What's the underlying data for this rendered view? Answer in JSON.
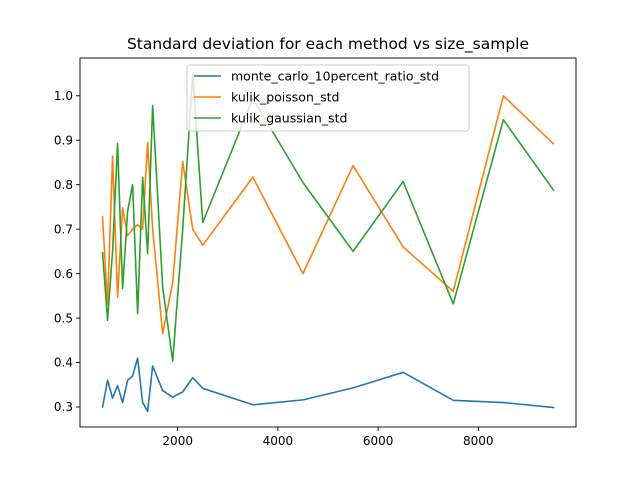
{
  "chart_data": {
    "type": "line",
    "title": "Standard deviation for each method vs size_sample",
    "xlabel": "",
    "ylabel": "",
    "xlim": [
      50,
      9950
    ],
    "ylim": [
      0.255,
      1.085
    ],
    "xticks": [
      2000,
      4000,
      6000,
      8000
    ],
    "yticks": [
      0.3,
      0.4,
      0.5,
      0.6,
      0.7,
      0.8,
      0.9,
      1.0
    ],
    "ytick_labels": [
      "0.3",
      "0.4",
      "0.5",
      "0.6",
      "0.7",
      "0.8",
      "0.9",
      "1.0"
    ],
    "grid": false,
    "legend_position": "top-center",
    "x": [
      500,
      600,
      700,
      800,
      900,
      1000,
      1100,
      1200,
      1300,
      1400,
      1500,
      1700,
      1900,
      2100,
      2300,
      2500,
      3500,
      4500,
      5500,
      6500,
      7500,
      8500,
      9500
    ],
    "series": [
      {
        "name": "monte_carlo_10percent_ratio_std",
        "color": "#1f77b4",
        "values": [
          0.3,
          0.36,
          0.32,
          0.348,
          0.31,
          0.36,
          0.37,
          0.41,
          0.31,
          0.29,
          0.392,
          0.337,
          0.322,
          0.334,
          0.366,
          0.342,
          0.305,
          0.316,
          0.343,
          0.378,
          0.315,
          0.31,
          0.299
        ]
      },
      {
        "name": "kulik_poisson_std",
        "color": "#ff7f0e",
        "values": [
          0.728,
          0.53,
          0.864,
          0.546,
          0.748,
          0.685,
          0.7,
          0.71,
          0.7,
          0.895,
          0.7,
          0.465,
          0.58,
          0.852,
          0.7,
          0.664,
          0.817,
          0.6,
          0.843,
          0.66,
          0.56,
          1.0,
          0.892
        ]
      },
      {
        "name": "kulik_gaussian_std",
        "color": "#2ca02c",
        "values": [
          0.647,
          0.495,
          0.65,
          0.893,
          0.566,
          0.74,
          0.8,
          0.51,
          0.816,
          0.645,
          0.978,
          0.57,
          0.403,
          0.7,
          1.05,
          0.715,
          0.994,
          0.805,
          0.65,
          0.807,
          0.532,
          0.946,
          0.788
        ]
      }
    ]
  }
}
